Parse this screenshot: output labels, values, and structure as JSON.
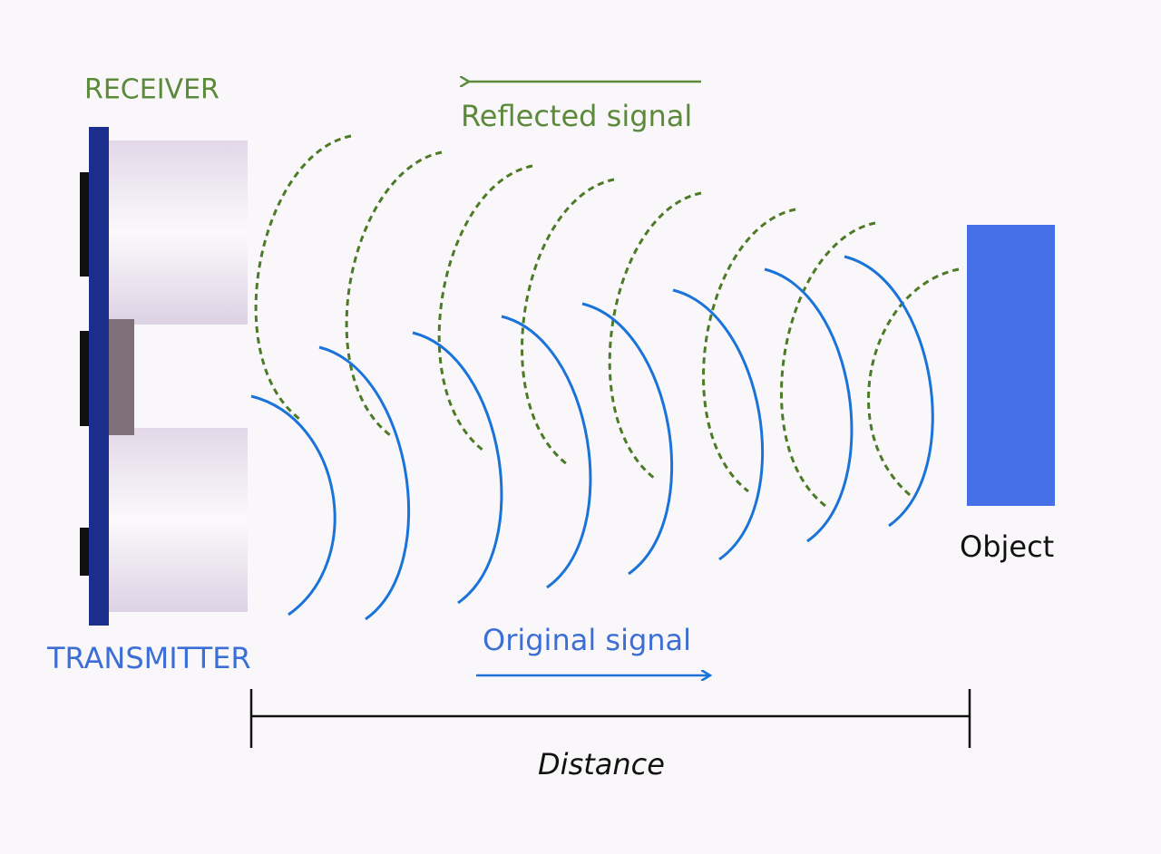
{
  "labels": {
    "receiver": "RECEIVER",
    "reflected_signal": "Reflected signal",
    "transmitter": "TRANSMITTER",
    "original_signal": "Original signal",
    "object": "Object",
    "distance": "Distance"
  }
}
